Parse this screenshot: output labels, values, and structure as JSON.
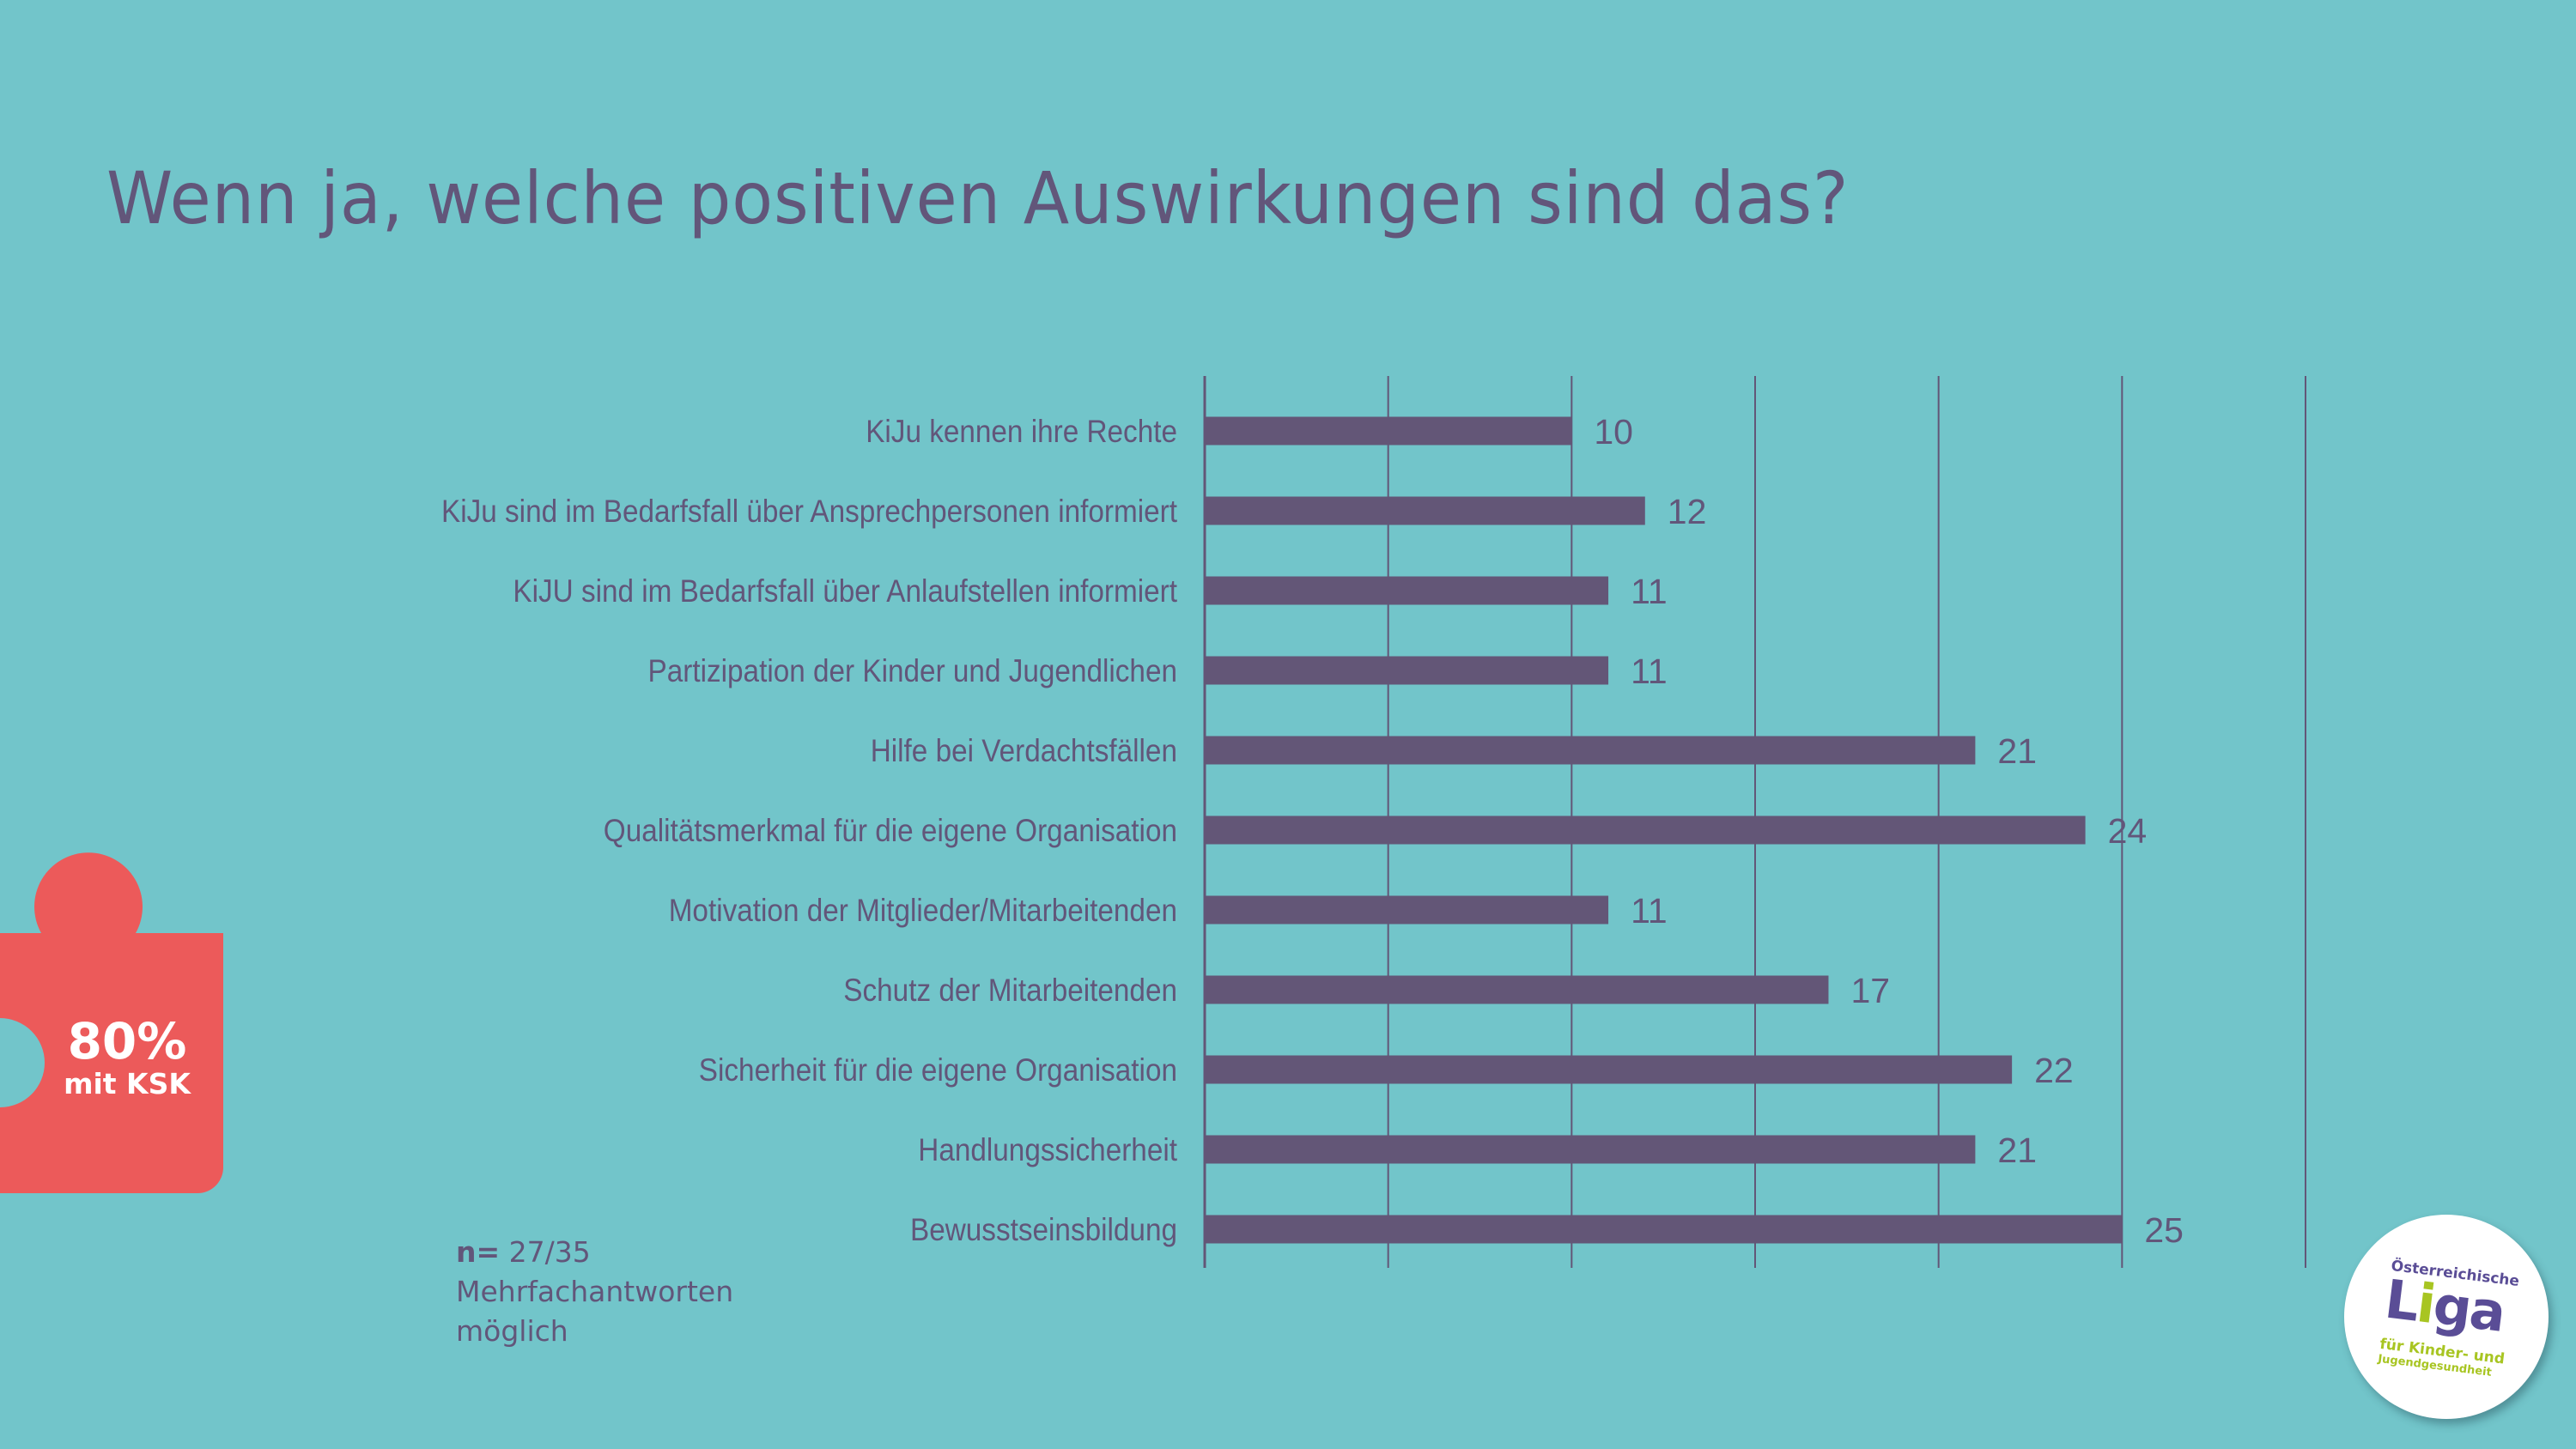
{
  "slide": {
    "title": "Wenn ja, welche positiven Auswirkungen sind das?",
    "background_color": "#72c5ca",
    "text_color": "#62567a"
  },
  "badge": {
    "percent": "80%",
    "label": "mit KSK",
    "color": "#ec5a5a"
  },
  "note": {
    "n_prefix": "n=",
    "n_value": " 27/35",
    "line2": "Mehrfachantworten",
    "line3": "möglich"
  },
  "logo": {
    "top_text": "Österreichische",
    "name_part1": "L",
    "name_accent": "i",
    "name_part2": "ga",
    "sub_line1": "für Kinder- und",
    "sub_line2": "Jugendgesundheit",
    "primary_color": "#5a4d96",
    "accent_color": "#a8c522"
  },
  "chart_data": {
    "type": "bar",
    "orientation": "horizontal",
    "title": "Wenn ja, welche positiven Auswirkungen sind das?",
    "xlabel": "",
    "ylabel": "",
    "xlim": [
      0,
      30
    ],
    "x_gridlines": [
      0,
      5,
      10,
      15,
      20,
      25,
      30
    ],
    "grid": true,
    "legend": "none",
    "bar_color": "#635677",
    "categories": [
      "KiJu kennen ihre Rechte",
      "KiJu sind im Bedarfsfall über Ansprechpersonen informiert",
      "KiJU sind im Bedarfsfall über Anlaufstellen informiert",
      "Partizipation der Kinder und Jugendlichen",
      "Hilfe bei Verdachtsfällen",
      "Qualitätsmerkmal für die eigene Organisation",
      "Motivation der Mitglieder/Mitarbeitenden",
      "Schutz der Mitarbeitenden",
      "Sicherheit für die eigene Organisation",
      "Handlungssicherheit",
      "Bewusstseinsbildung"
    ],
    "values": [
      10,
      12,
      11,
      11,
      21,
      24,
      11,
      17,
      22,
      21,
      25
    ],
    "data_labels": [
      "10",
      "12",
      "11",
      "11",
      "21",
      "24",
      "11",
      "17",
      "22",
      "21",
      "25"
    ]
  }
}
